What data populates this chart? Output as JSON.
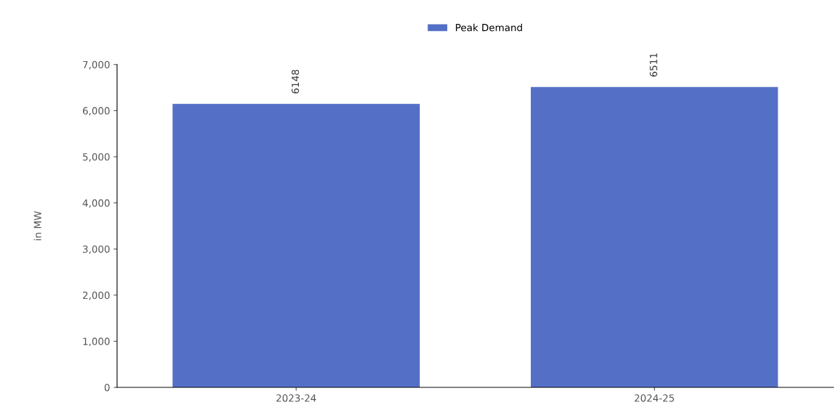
{
  "chart_data": {
    "type": "bar",
    "categories": [
      "2023-24",
      "2024-25"
    ],
    "series": [
      {
        "name": "Peak Demand",
        "color": "#5470c6",
        "values": [
          6148,
          6511
        ]
      }
    ],
    "ylabel": "in MW",
    "ylim": [
      0,
      7000
    ],
    "yticks": [
      0,
      {
        "value": 1000,
        "label": "1,000"
      },
      {
        "value": 2000,
        "label": "2,000"
      },
      {
        "value": 3000,
        "label": "3,000"
      },
      {
        "value": 4000,
        "label": "4,000"
      },
      {
        "value": 5000,
        "label": "5,000"
      },
      {
        "value": 6000,
        "label": "6,000"
      },
      {
        "value": 7000,
        "label": "7,000"
      }
    ],
    "data_labels": true,
    "grid": false,
    "legend": "top"
  }
}
